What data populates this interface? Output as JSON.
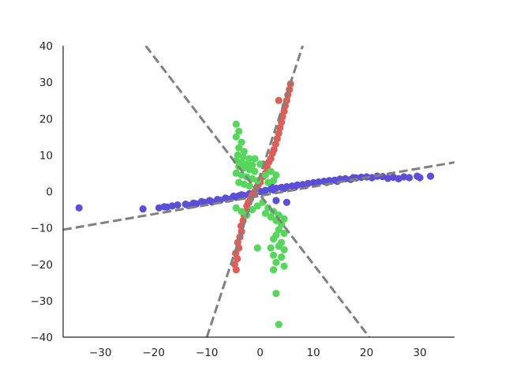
{
  "chart_data": {
    "type": "scatter",
    "title": "",
    "xlabel": "",
    "ylabel": "",
    "xlim": [
      -37,
      36.5
    ],
    "ylim": [
      -40,
      40
    ],
    "xticks": [
      -30,
      -20,
      -10,
      0,
      10,
      20,
      30
    ],
    "yticks": [
      -40,
      -30,
      -20,
      -10,
      0,
      10,
      20,
      30,
      40
    ],
    "xtick_labels": [
      "−30",
      "−20",
      "−10",
      "0",
      "10",
      "20",
      "30"
    ],
    "ytick_labels": [
      "−40",
      "−30",
      "−20",
      "−10",
      "0",
      "10",
      "20",
      "30",
      "40"
    ],
    "grid": false,
    "spines": [
      "left",
      "bottom"
    ],
    "series": [
      {
        "color": "#5b4fd8",
        "points": [
          [
            -34,
            -4.5
          ],
          [
            -22,
            -4.8
          ],
          [
            -19,
            -4.5
          ],
          [
            -18,
            -4.2
          ],
          [
            -17.5,
            -4.3
          ],
          [
            -16.5,
            -4
          ],
          [
            -15.5,
            -3.7
          ],
          [
            -14,
            -3.5
          ],
          [
            -13.5,
            -3.8
          ],
          [
            -12.5,
            -3.2
          ],
          [
            -12,
            -3.4
          ],
          [
            -11,
            -2.8
          ],
          [
            -10.5,
            -3
          ],
          [
            -9.5,
            -2.5
          ],
          [
            -9,
            -2.9
          ],
          [
            -8,
            -2.2
          ],
          [
            -7.5,
            -2.4
          ],
          [
            -6.5,
            -1.8
          ],
          [
            -6,
            -2.1
          ],
          [
            -5,
            -1.3
          ],
          [
            -4.5,
            -1.6
          ],
          [
            -4,
            -1.2
          ],
          [
            -3.5,
            -0.9
          ],
          [
            -3,
            -1.1
          ],
          [
            -2,
            -0.6
          ],
          [
            -1.5,
            -0.8
          ],
          [
            -1,
            -0.3
          ],
          [
            0,
            0
          ],
          [
            0.5,
            -0.2
          ],
          [
            1,
            0.3
          ],
          [
            2,
            0.6
          ],
          [
            2.5,
            0.4
          ],
          [
            3,
            0.9
          ],
          [
            4,
            1.1
          ],
          [
            4.5,
            0.8
          ],
          [
            5,
            1.3
          ],
          [
            6,
            1.5
          ],
          [
            6.5,
            1.2
          ],
          [
            7,
            1.8
          ],
          [
            8,
            1.9
          ],
          [
            8.5,
            1.6
          ],
          [
            9,
            2.2
          ],
          [
            10,
            2.4
          ],
          [
            10.5,
            2.1
          ],
          [
            11,
            2.6
          ],
          [
            12,
            2.8
          ],
          [
            12.5,
            2.5
          ],
          [
            13,
            3.0
          ],
          [
            14,
            3.1
          ],
          [
            14.5,
            2.8
          ],
          [
            15,
            3.4
          ],
          [
            16,
            3.5
          ],
          [
            17,
            3.3
          ],
          [
            17.5,
            3.8
          ],
          [
            18,
            3.7
          ],
          [
            19,
            3.9
          ],
          [
            20,
            4.0
          ],
          [
            21,
            3.8
          ],
          [
            22,
            4.2
          ],
          [
            23,
            4.1
          ],
          [
            24,
            3.6
          ],
          [
            25,
            3.9
          ],
          [
            26,
            3.5
          ],
          [
            27,
            4.0
          ],
          [
            28,
            3.8
          ],
          [
            29.5,
            4.2
          ],
          [
            30,
            3.8
          ],
          [
            32,
            4.2
          ],
          [
            3,
            -2.5
          ],
          [
            5,
            -3.0
          ],
          [
            2,
            2.2
          ]
        ]
      },
      {
        "color": "#db5f57",
        "points": [
          [
            -4.5,
            -21.5
          ],
          [
            -4.8,
            -20
          ],
          [
            -4.3,
            -18.5
          ],
          [
            -4.6,
            -17
          ],
          [
            -4,
            -15.5
          ],
          [
            -4.2,
            -14
          ],
          [
            -3.8,
            -12.5
          ],
          [
            -3.5,
            -11
          ],
          [
            -3.6,
            -9.5
          ],
          [
            -3.2,
            -8
          ],
          [
            -3,
            -6.5
          ],
          [
            -2.7,
            -5.5
          ],
          [
            -2.5,
            -4
          ],
          [
            -2.2,
            -3
          ],
          [
            -1.8,
            -2
          ],
          [
            -1.5,
            -1
          ],
          [
            -1,
            0
          ],
          [
            -0.5,
            1.5
          ],
          [
            0,
            2.5
          ],
          [
            0.5,
            4
          ],
          [
            1,
            5
          ],
          [
            1.3,
            6.5
          ],
          [
            1.6,
            8
          ],
          [
            2,
            9
          ],
          [
            2.3,
            10.5
          ],
          [
            2.6,
            11.5
          ],
          [
            2.9,
            13
          ],
          [
            3.2,
            14.5
          ],
          [
            3.5,
            16
          ],
          [
            3.7,
            17.5
          ],
          [
            4,
            19
          ],
          [
            4.2,
            20.5
          ],
          [
            4.5,
            22
          ],
          [
            4.7,
            23.5
          ],
          [
            5,
            25
          ],
          [
            5.2,
            26.5
          ],
          [
            5.5,
            28
          ],
          [
            5.7,
            29.5
          ],
          [
            3.5,
            25
          ],
          [
            0.5,
            7.5
          ]
        ]
      },
      {
        "color": "#56d75c",
        "points": [
          [
            -4.5,
            18.5
          ],
          [
            -4,
            16.5
          ],
          [
            -4.5,
            15
          ],
          [
            -3.5,
            13.5
          ],
          [
            -4,
            12
          ],
          [
            -3,
            11
          ],
          [
            -4.2,
            10
          ],
          [
            -3.2,
            9.5
          ],
          [
            -2,
            9
          ],
          [
            -4.5,
            8.5
          ],
          [
            -3.5,
            8
          ],
          [
            -2.5,
            7.5
          ],
          [
            -1.5,
            7.2
          ],
          [
            -4,
            6.8
          ],
          [
            -3,
            6.5
          ],
          [
            -2,
            6
          ],
          [
            -1,
            5.5
          ],
          [
            -4.5,
            5
          ],
          [
            -3.5,
            4.5
          ],
          [
            -2.5,
            4
          ],
          [
            -1.5,
            3.5
          ],
          [
            -0.5,
            3
          ],
          [
            -4,
            2.5
          ],
          [
            -3,
            2
          ],
          [
            -2,
            1.5
          ],
          [
            1,
            4.5
          ],
          [
            2,
            5.5
          ],
          [
            3,
            4.5
          ],
          [
            2.5,
            3
          ],
          [
            1.5,
            2.5
          ],
          [
            -1,
            9
          ],
          [
            0,
            7.5
          ],
          [
            -4.5,
            -4.5
          ],
          [
            -3.5,
            -5.5
          ],
          [
            -2.5,
            -6.5
          ],
          [
            -1.5,
            -5
          ],
          [
            -0.5,
            -4
          ],
          [
            0.5,
            -3
          ],
          [
            1.5,
            -4.5
          ],
          [
            2.5,
            -5.5
          ],
          [
            3.5,
            -6.5
          ],
          [
            4.5,
            -7.5
          ],
          [
            3,
            -8
          ],
          [
            2,
            -7
          ],
          [
            1,
            -6
          ],
          [
            4,
            -9
          ],
          [
            3.5,
            -10.5
          ],
          [
            4.5,
            -11.5
          ],
          [
            3,
            -12
          ],
          [
            2.5,
            -13
          ],
          [
            4,
            -14
          ],
          [
            3.5,
            -15
          ],
          [
            4.5,
            -16
          ],
          [
            2,
            -15.5
          ],
          [
            -0.5,
            -15.5
          ],
          [
            2.5,
            -17.5
          ],
          [
            4,
            -18
          ],
          [
            3,
            -19.5
          ],
          [
            4.5,
            -20.5
          ],
          [
            2.5,
            -21.5
          ],
          [
            3,
            -28
          ],
          [
            3.5,
            -36.5
          ]
        ]
      }
    ],
    "lines": [
      {
        "style": "dashed",
        "color": "#808080",
        "from": [
          -37,
          -10.5
        ],
        "to": [
          36.5,
          8.0
        ]
      },
      {
        "style": "dashed",
        "color": "#808080",
        "from": [
          -10.0,
          -40
        ],
        "to": [
          8.0,
          40
        ]
      },
      {
        "style": "dashed",
        "color": "#808080",
        "from": [
          -21.5,
          40
        ],
        "to": [
          20.5,
          -40
        ]
      }
    ]
  }
}
